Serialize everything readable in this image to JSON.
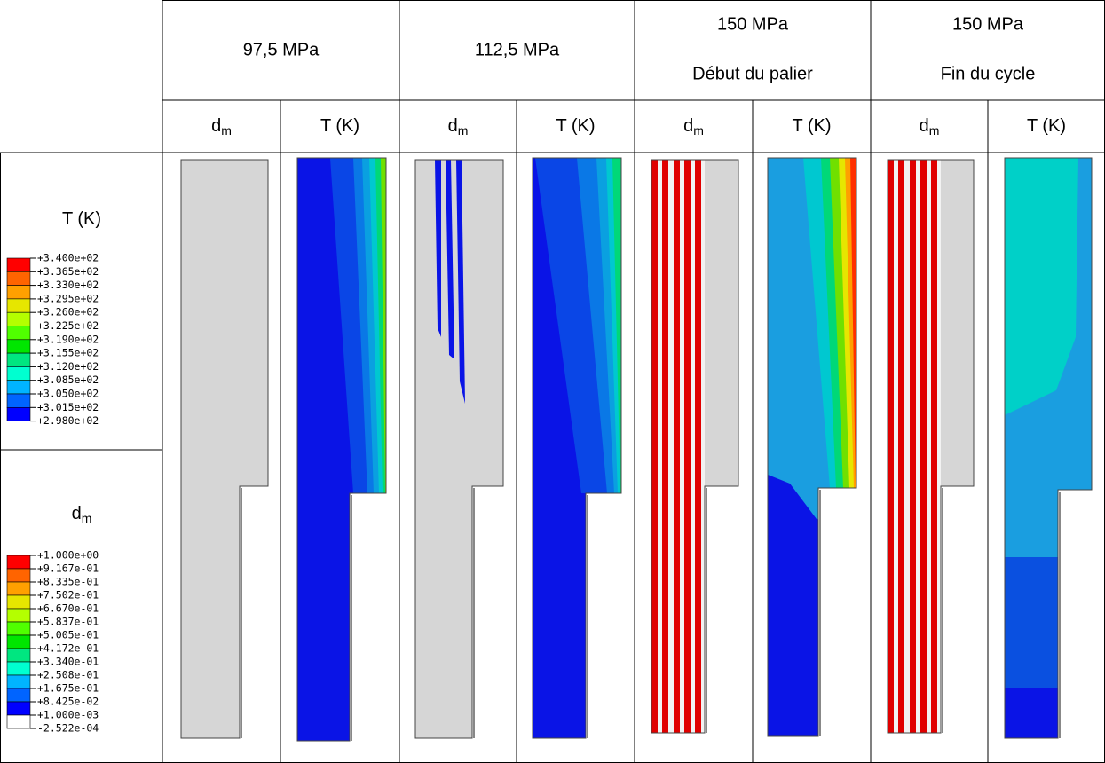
{
  "header": {
    "groups": [
      {
        "lines": [
          "97,5 MPa"
        ]
      },
      {
        "lines": [
          "112,5 MPa"
        ]
      },
      {
        "lines": [
          "150 MPa",
          "Début du palier"
        ]
      },
      {
        "lines": [
          "150 MPa",
          "Fin du cycle"
        ]
      }
    ],
    "subheaders": [
      {
        "text": "d",
        "sub": "m"
      },
      {
        "text": "T (K)"
      },
      {
        "text": "d",
        "sub": "m"
      },
      {
        "text": "T (K)"
      },
      {
        "text": "d",
        "sub": "m"
      },
      {
        "text": "T (K)"
      },
      {
        "text": "d",
        "sub": "m"
      },
      {
        "text": "T (K)"
      }
    ]
  },
  "legends": [
    {
      "title": {
        "text": "T (K)"
      },
      "labels": [
        "+3.400e+02",
        "+3.365e+02",
        "+3.330e+02",
        "+3.295e+02",
        "+3.260e+02",
        "+3.225e+02",
        "+3.190e+02",
        "+3.155e+02",
        "+3.120e+02",
        "+3.085e+02",
        "+3.050e+02",
        "+3.015e+02",
        "+2.980e+02"
      ]
    },
    {
      "title": {
        "text": "d",
        "sub": "m"
      },
      "labels": [
        "+1.000e+00",
        "+9.167e-01",
        "+8.335e-01",
        "+7.502e-01",
        "+6.670e-01",
        "+5.837e-01",
        "+5.005e-01",
        "+4.172e-01",
        "+3.340e-01",
        "+2.508e-01",
        "+1.675e-01",
        "+8.425e-02",
        "+1.000e-03",
        "-2.522e-04"
      ]
    }
  ]
}
